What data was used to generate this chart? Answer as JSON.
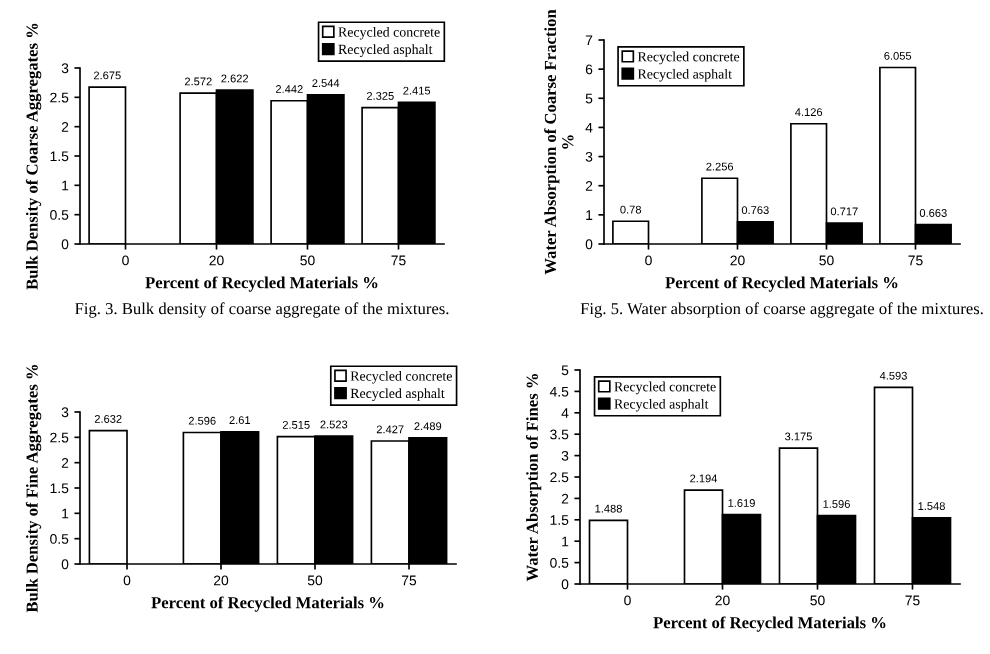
{
  "chart_data": [
    {
      "type": "bar",
      "annotations": [
        "Fig. 3. Bulk density of coarse aggregate of the mixtures."
      ],
      "xlabel": "Percent of Recycled Materials %",
      "ylabel": "Bulk Density of Coarse Aggregates %",
      "categories": [
        "0",
        "20",
        "50",
        "75"
      ],
      "ylim": [
        0,
        3
      ],
      "yticks": [
        0,
        0.5,
        1,
        1.5,
        2,
        2.5,
        3
      ],
      "data_labels": true,
      "legend": "top right",
      "series": [
        {
          "name": "Recycled concrete",
          "color": "#ffffff",
          "values": [
            2.675,
            2.572,
            2.442,
            2.325
          ]
        },
        {
          "name": "Recycled asphalt",
          "color": "#000000",
          "values": [
            null,
            2.622,
            2.544,
            2.415
          ]
        }
      ]
    },
    {
      "type": "bar",
      "annotations": [
        "Fig. 5. Water absorption of coarse aggregate of the mixtures."
      ],
      "xlabel": "Percent of Recycled Materials %",
      "ylabel": "Water Absorption of Coarse Fraction %",
      "categories": [
        "0",
        "20",
        "50",
        "75"
      ],
      "ylim": [
        0,
        7
      ],
      "yticks": [
        0,
        1,
        2,
        3,
        4,
        5,
        6,
        7
      ],
      "data_labels": true,
      "legend": "top left",
      "series": [
        {
          "name": "Recycled concrete",
          "color": "#ffffff",
          "values": [
            0.78,
            2.256,
            4.126,
            6.055
          ]
        },
        {
          "name": "Recycled asphalt",
          "color": "#000000",
          "values": [
            null,
            0.763,
            0.717,
            0.663
          ]
        }
      ]
    },
    {
      "type": "bar",
      "xlabel": "Percent of Recycled Materials %",
      "ylabel": "Bulk Density of Fine Aggregates %",
      "categories": [
        "0",
        "20",
        "50",
        "75"
      ],
      "ylim": [
        0,
        3
      ],
      "yticks": [
        0,
        0.5,
        1,
        1.5,
        2,
        2.5,
        3
      ],
      "data_labels": true,
      "legend": "top right",
      "series": [
        {
          "name": "Recycled concrete",
          "color": "#ffffff",
          "values": [
            2.632,
            2.596,
            2.515,
            2.427
          ]
        },
        {
          "name": "Recycled asphalt",
          "color": "#000000",
          "values": [
            null,
            2.61,
            2.523,
            2.489
          ]
        }
      ]
    },
    {
      "type": "bar",
      "xlabel": "Percent of Recycled Materials %",
      "ylabel": "Water Absorption of Fines %",
      "categories": [
        "0",
        "20",
        "50",
        "75"
      ],
      "ylim": [
        0,
        5
      ],
      "yticks": [
        0,
        0.5,
        1,
        1.5,
        2,
        2.5,
        3,
        3.5,
        4,
        4.5,
        5
      ],
      "data_labels": true,
      "legend": "top left",
      "series": [
        {
          "name": "Recycled concrete",
          "color": "#ffffff",
          "values": [
            1.488,
            2.194,
            3.175,
            4.593
          ]
        },
        {
          "name": "Recycled asphalt",
          "color": "#000000",
          "values": [
            null,
            1.619,
            1.596,
            1.548
          ]
        }
      ]
    }
  ]
}
